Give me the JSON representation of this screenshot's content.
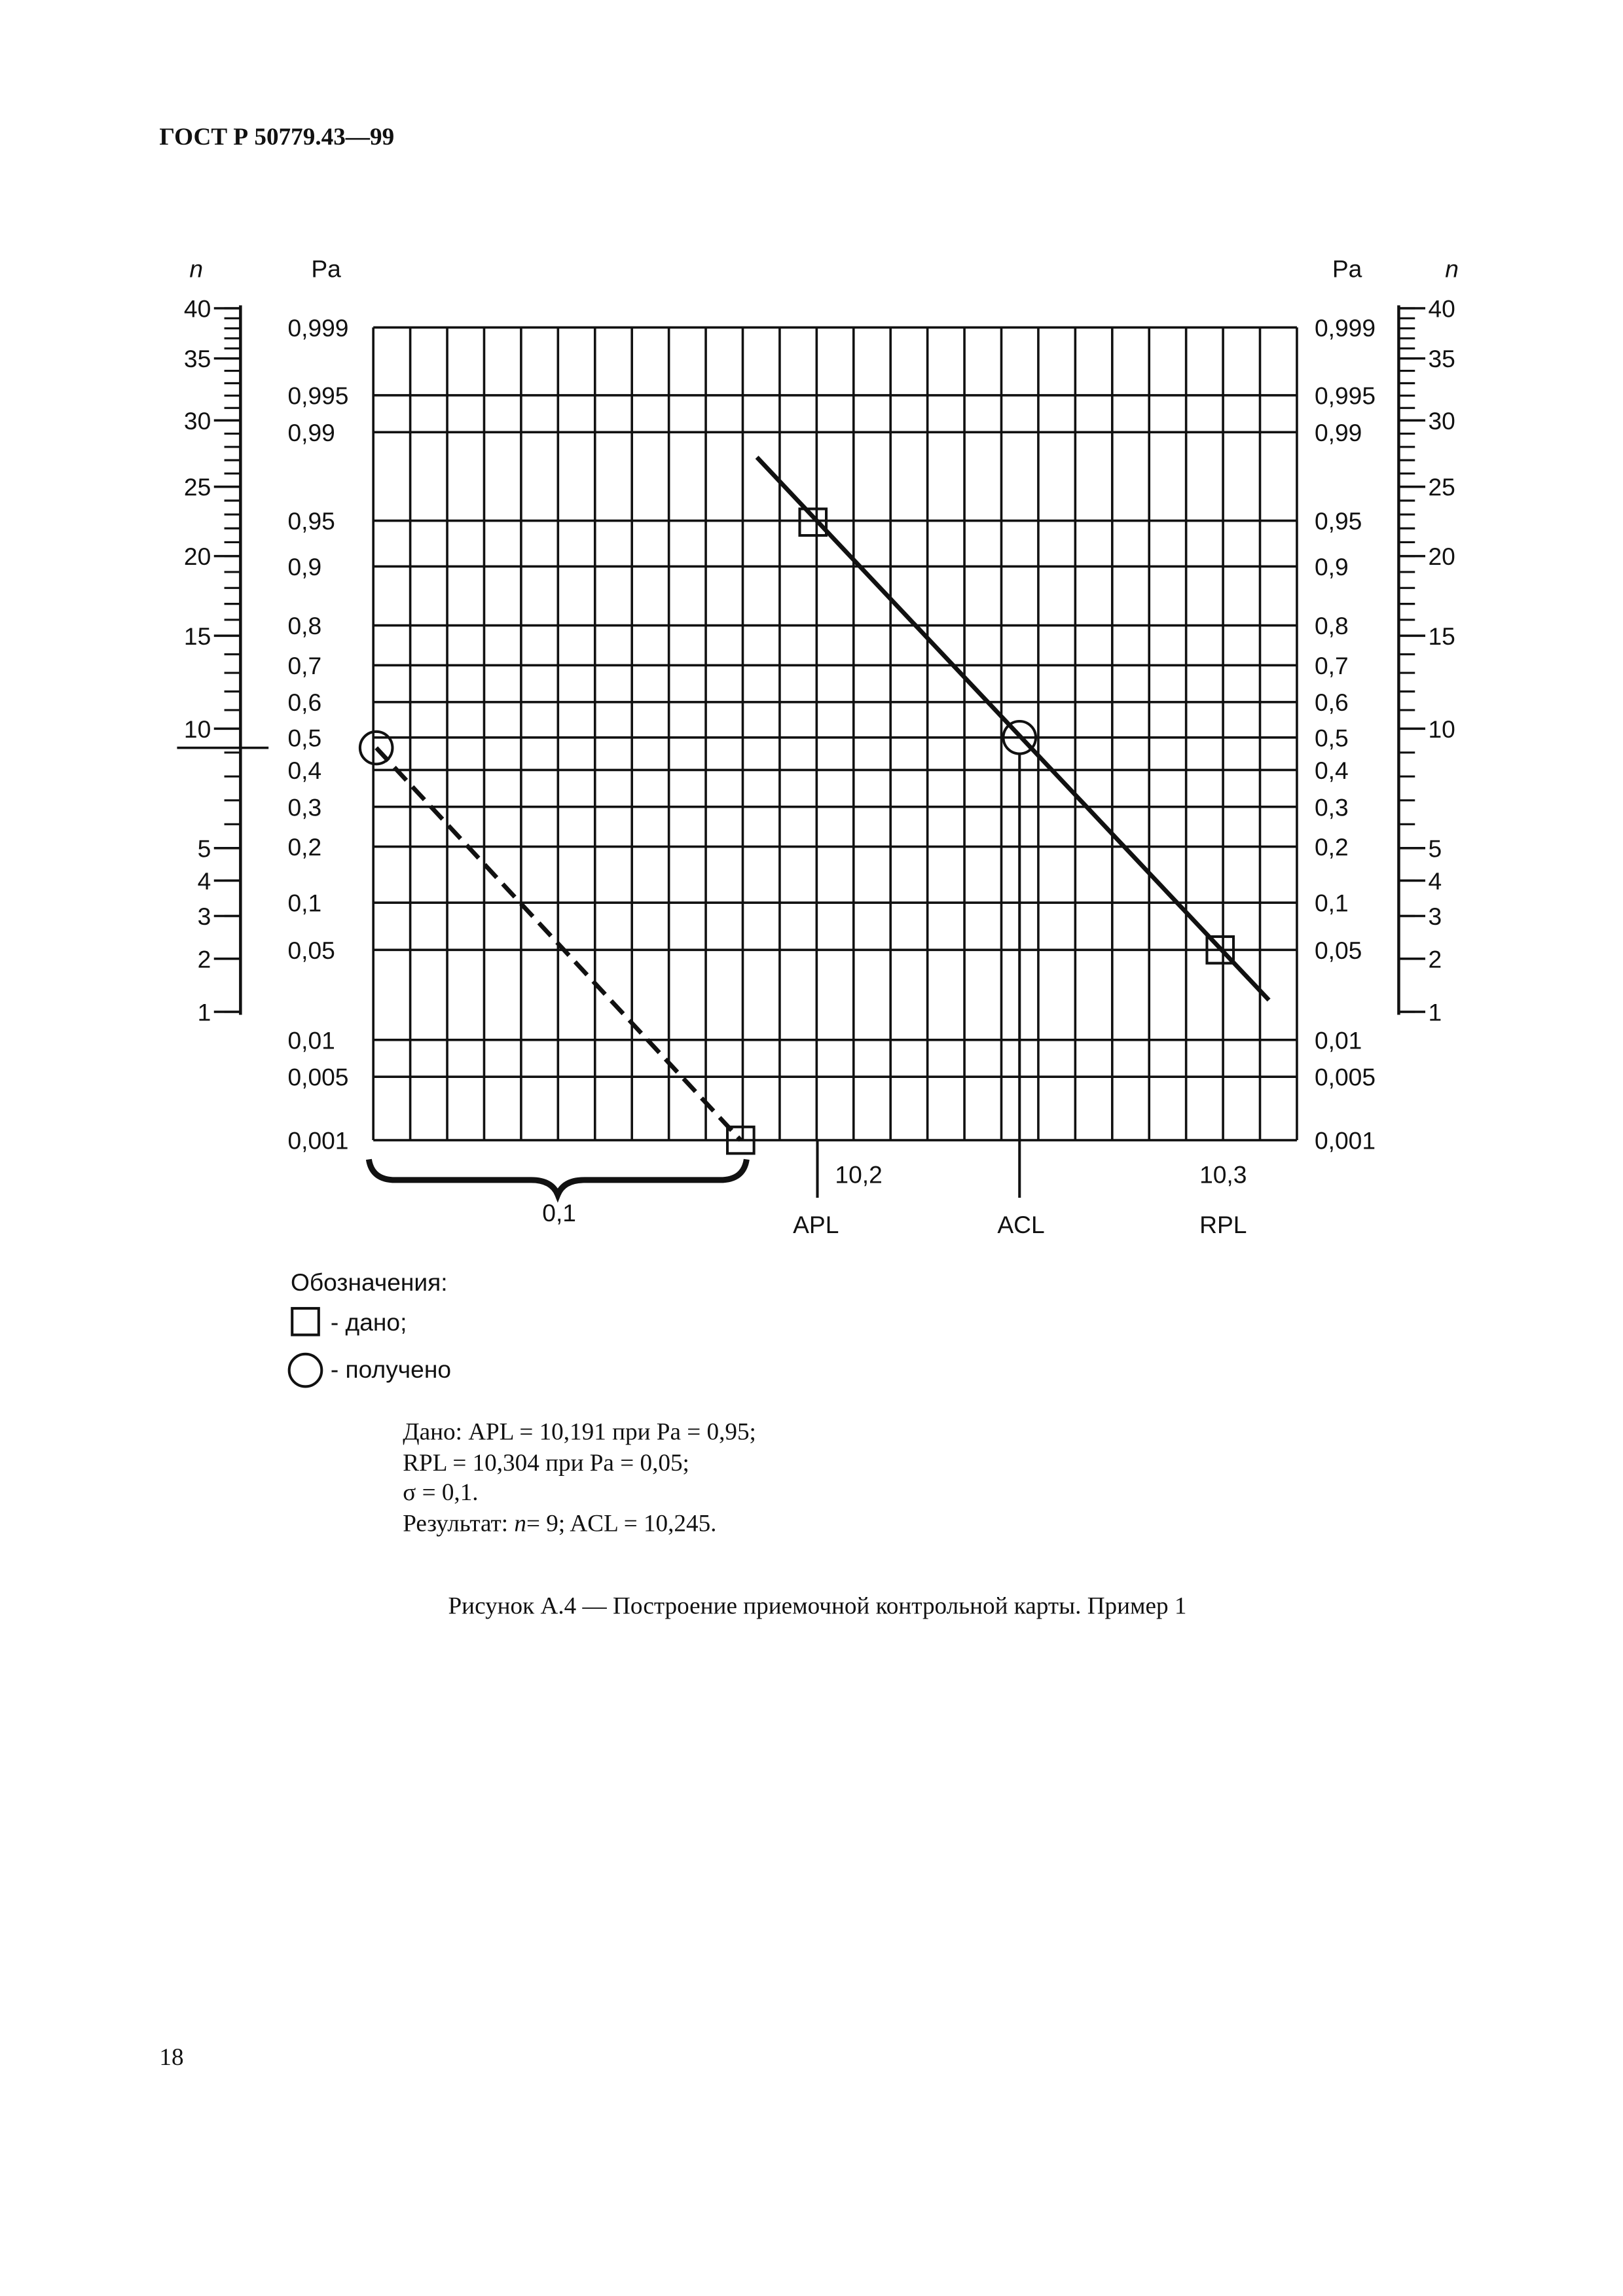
{
  "header": {
    "title": "ГОСТ Р 50779.43—99"
  },
  "figure": {
    "n_axis_label": "n",
    "pa_axis_label": "Pa",
    "pa_ticks": [
      "0,999",
      "0,995",
      "0,99",
      "0,95",
      "0,9",
      "0,8",
      "0,7",
      "0,6",
      "0,5",
      "0,4",
      "0,3",
      "0,2",
      "0,1",
      "0,05",
      "0,01",
      "0,005",
      "0,001"
    ],
    "n_ticks": [
      "40",
      "35",
      "30",
      "25",
      "20",
      "15",
      "10",
      "5",
      "4",
      "3",
      "2",
      "1"
    ],
    "x_ticks": [
      "10,2",
      "10,3"
    ],
    "x_markers": [
      "APL",
      "ACL",
      "RPL"
    ],
    "sigma_label": "0,1"
  },
  "legend": {
    "title": "Обозначения:",
    "items": [
      "- дано;",
      "- получено"
    ]
  },
  "notes": {
    "lines": [
      "Дано: APL = 10,191 при Pa  = 0,95;",
      "RPL = 10,304 при Pa = 0,05;",
      "σ = 0,1."
    ],
    "result_prefix": "Результат: ",
    "result_var": "n",
    "result_rest": "= 9; ACL = 10,245."
  },
  "caption": "Рисунок А.4 — Построение приемочной контрольной карты. Пример 1",
  "page_number": "18"
}
